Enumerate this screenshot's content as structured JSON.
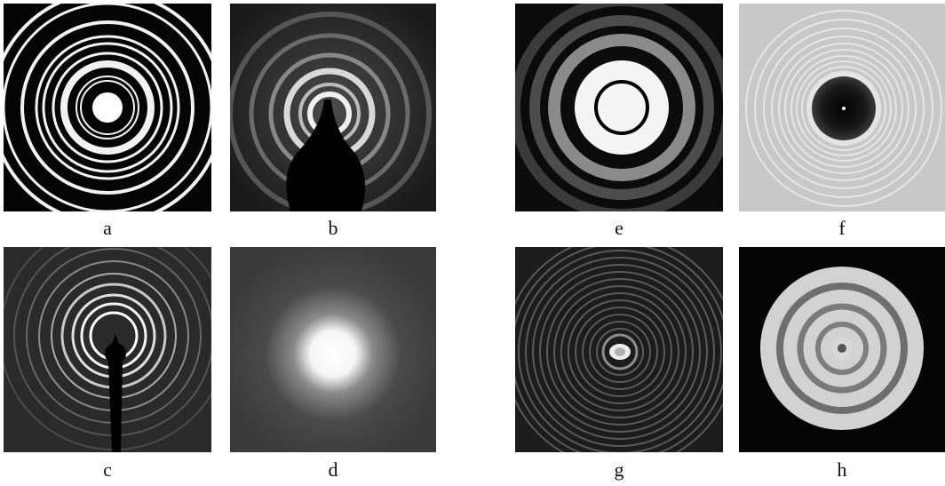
{
  "panels": {
    "a": {
      "label": "a"
    },
    "b": {
      "label": "b"
    },
    "c": {
      "label": "c"
    },
    "d": {
      "label": "d"
    },
    "e": {
      "label": "e"
    },
    "f": {
      "label": "f"
    },
    "g": {
      "label": "g"
    },
    "h": {
      "label": "h"
    }
  }
}
